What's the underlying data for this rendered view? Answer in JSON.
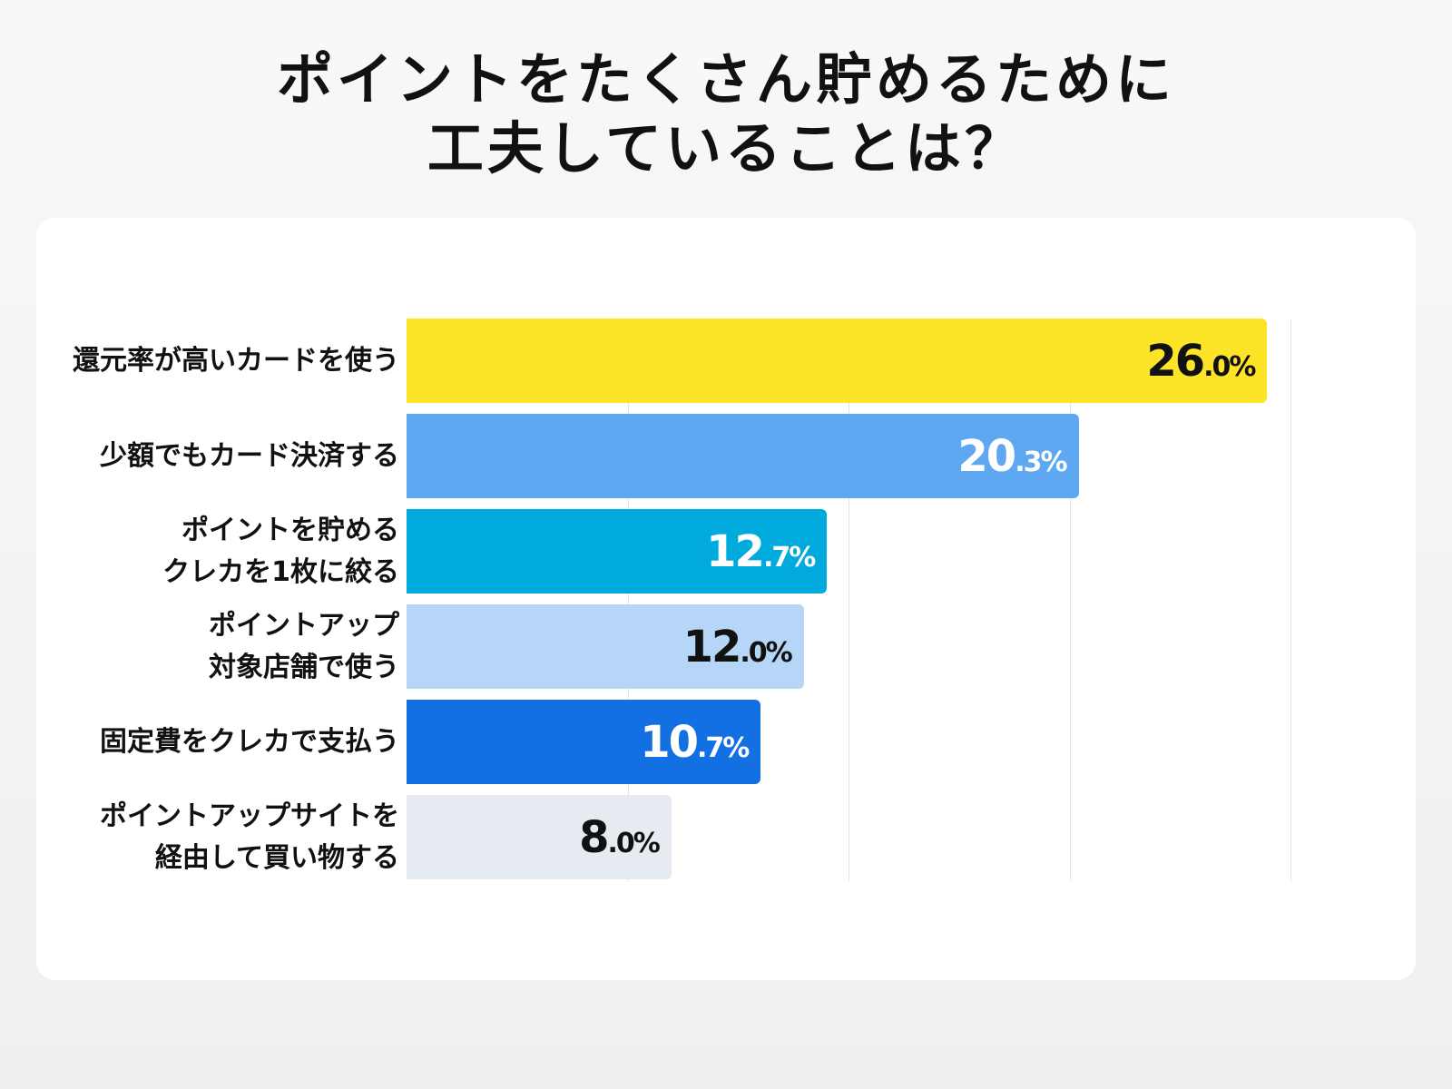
{
  "chart_data": {
    "type": "bar",
    "orientation": "horizontal",
    "title": [
      "ポイントをたくさん貯めるために",
      "工夫していることは？"
    ],
    "categories": [
      [
        "還元率が高いカードを使う"
      ],
      [
        "少額でもカード決済する"
      ],
      [
        "ポイントを貯める",
        "クレカを1枚に絞る"
      ],
      [
        "ポイントアップ",
        "対象店舗で使う"
      ],
      [
        "固定費をクレカで支払う"
      ],
      [
        "ポイントアップサイトを",
        "経由して買い物する"
      ]
    ],
    "values": [
      26.0,
      20.3,
      12.7,
      12.0,
      10.7,
      8.0
    ],
    "unit": "%",
    "colors": [
      "#FDE426",
      "#5DA8F0",
      "#00AADD",
      "#B6D6F7",
      "#1370E2",
      "#E6EAF1"
    ],
    "label_colors": [
      "#111111",
      "#FFFFFF",
      "#FFFFFF",
      "#111111",
      "#FFFFFF",
      "#111111"
    ],
    "xlim": [
      0,
      26.7
    ],
    "grid": true
  }
}
